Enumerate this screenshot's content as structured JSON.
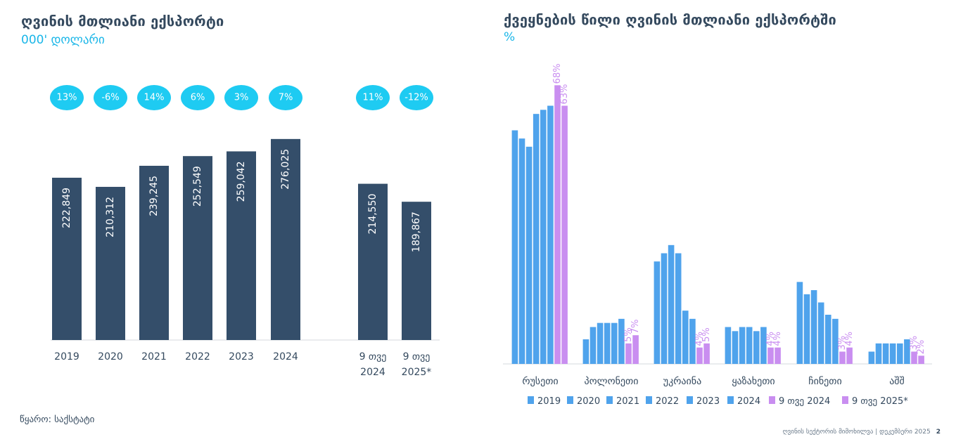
{
  "left_title": "ღვინის მთლიანი ექსპორტი",
  "left_subtitle": "000' დოლარი",
  "right_title": "ქვეყნების წილი ღვინის მთლიანი ექსპორტში",
  "right_subtitle": "%",
  "source": "წყარო: საქსტატი",
  "footer": {
    "text": "ღვინის სექტორის მიმოხილვა | დეკემბერი 2025",
    "page": "2"
  },
  "colors": {
    "bar_dark": "#344e6a",
    "badge": "#1ecbf2",
    "blue": "#4fa3ec",
    "purple": "#c98ef0",
    "axis": "#d5d9de"
  },
  "chart_data": [
    {
      "type": "bar",
      "title": "ღვინის მთლიანი ექსპორტი",
      "ylabel": "000' დოლარი",
      "categories": [
        [
          "2019"
        ],
        [
          "2020"
        ],
        [
          "2021"
        ],
        [
          "2022"
        ],
        [
          "2023"
        ],
        [
          "2024"
        ],
        [
          "9 თვე",
          "2024"
        ],
        [
          "9 თვე",
          "2025*"
        ]
      ],
      "values": [
        222849,
        210312,
        239245,
        252549,
        259042,
        276025,
        214550,
        189867
      ],
      "value_labels": [
        "222,849",
        "210,312",
        "239,245",
        "252,549",
        "259,042",
        "276,025",
        "214,550",
        "189,867"
      ],
      "growth_labels": [
        "13%",
        "-6%",
        "14%",
        "6%",
        "3%",
        "7%",
        "11%",
        "-12%"
      ],
      "ylim": [
        0,
        300000
      ],
      "grid": false
    },
    {
      "type": "bar",
      "title": "ქვეყნების წილი ღვინის მთლიანი ექსპორტში",
      "ylabel": "%",
      "categories": [
        "რუსეთი",
        "პოლონეთი",
        "უკრაინა",
        "ყაზახეთი",
        "ჩინეთი",
        "აშშ"
      ],
      "series": [
        {
          "name": "2019",
          "values": [
            57,
            6,
            25,
            9,
            20,
            3
          ]
        },
        {
          "name": "2020",
          "values": [
            55,
            9,
            27,
            8,
            17,
            5
          ]
        },
        {
          "name": "2021",
          "values": [
            53,
            10,
            29,
            9,
            18,
            5
          ]
        },
        {
          "name": "2022",
          "values": [
            61,
            10,
            27,
            9,
            15,
            5
          ]
        },
        {
          "name": "2023",
          "values": [
            62,
            10,
            13,
            8,
            12,
            5
          ]
        },
        {
          "name": "2024",
          "values": [
            63,
            11,
            11,
            9,
            11,
            6
          ]
        },
        {
          "name": "9 თვე 2024",
          "values": [
            68,
            5,
            4,
            4,
            3,
            3
          ]
        },
        {
          "name": "9 თვე 2025*",
          "values": [
            63,
            7,
            5,
            4,
            4,
            2
          ]
        }
      ],
      "data_labels": {
        "9 თვე 2024": [
          "68%",
          "5%",
          "4%",
          "4%",
          "3%",
          "3%"
        ],
        "9 თვე 2025*": [
          "63%",
          "7%",
          "5%",
          "4%",
          "4%",
          "2%"
        ]
      },
      "ylim": [
        0,
        72
      ],
      "legend": "bottom",
      "grid": false
    }
  ]
}
